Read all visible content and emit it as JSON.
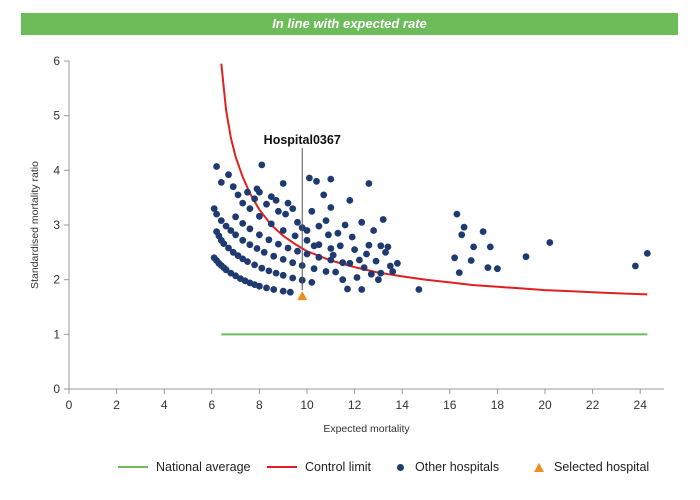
{
  "banner": {
    "text": "In line with expected rate"
  },
  "colors": {
    "banner": "#6cbd5a",
    "national": "#6cbd5a",
    "control": "#e02020",
    "hospital": "#1f3a70",
    "selected": "#f08c1e",
    "axis": "#999999"
  },
  "legend": {
    "national": "National average",
    "control": "Control limit",
    "other": "Other hospitals",
    "selected": "Selected hospital"
  },
  "chart_data": {
    "type": "scatter",
    "title": "",
    "xlabel": "Expected mortality",
    "ylabel": "Standardised mortality ratio",
    "xlim": [
      0,
      25
    ],
    "ylim": [
      0,
      6
    ],
    "xticks": [
      0,
      2,
      4,
      6,
      8,
      10,
      12,
      14,
      16,
      18,
      20,
      22,
      24
    ],
    "yticks": [
      0,
      1,
      2,
      3,
      4,
      5,
      6
    ],
    "national_average": {
      "x": [
        6.4,
        24.3
      ],
      "y": 1
    },
    "control_limit": {
      "x": [
        6.4,
        6.6,
        6.8,
        7.0,
        7.3,
        7.6,
        8.0,
        8.5,
        9.0,
        9.5,
        10.0,
        11.0,
        12.0,
        13.0,
        14.0,
        15.0,
        16.0,
        17.0,
        18.0,
        19.0,
        20.0,
        21.0,
        22.0,
        23.0,
        24.3
      ],
      "y": [
        5.95,
        5.1,
        4.6,
        4.25,
        3.88,
        3.58,
        3.28,
        3.0,
        2.8,
        2.65,
        2.52,
        2.35,
        2.23,
        2.13,
        2.06,
        2.0,
        1.95,
        1.9,
        1.87,
        1.84,
        1.81,
        1.79,
        1.77,
        1.75,
        1.73
      ]
    },
    "selected_hospital": {
      "name": "Hospital0367",
      "x": 9.8,
      "y": 1.7
    },
    "other_hospitals": [
      {
        "x": 6.1,
        "y": 2.4
      },
      {
        "x": 6.2,
        "y": 2.35
      },
      {
        "x": 6.3,
        "y": 2.3
      },
      {
        "x": 6.4,
        "y": 2.26
      },
      {
        "x": 6.5,
        "y": 2.22
      },
      {
        "x": 6.6,
        "y": 2.18
      },
      {
        "x": 6.8,
        "y": 2.12
      },
      {
        "x": 7.0,
        "y": 2.07
      },
      {
        "x": 7.2,
        "y": 2.02
      },
      {
        "x": 7.4,
        "y": 1.98
      },
      {
        "x": 7.6,
        "y": 1.94
      },
      {
        "x": 7.8,
        "y": 1.91
      },
      {
        "x": 8.0,
        "y": 1.88
      },
      {
        "x": 8.3,
        "y": 1.85
      },
      {
        "x": 8.6,
        "y": 1.82
      },
      {
        "x": 9.0,
        "y": 1.79
      },
      {
        "x": 9.3,
        "y": 1.77
      },
      {
        "x": 6.2,
        "y": 2.88
      },
      {
        "x": 6.3,
        "y": 2.8
      },
      {
        "x": 6.4,
        "y": 2.72
      },
      {
        "x": 6.5,
        "y": 2.66
      },
      {
        "x": 6.7,
        "y": 2.58
      },
      {
        "x": 6.9,
        "y": 2.5
      },
      {
        "x": 7.1,
        "y": 2.44
      },
      {
        "x": 7.3,
        "y": 2.38
      },
      {
        "x": 7.5,
        "y": 2.33
      },
      {
        "x": 7.8,
        "y": 2.27
      },
      {
        "x": 8.1,
        "y": 2.21
      },
      {
        "x": 8.4,
        "y": 2.16
      },
      {
        "x": 8.7,
        "y": 2.12
      },
      {
        "x": 9.0,
        "y": 2.08
      },
      {
        "x": 9.4,
        "y": 2.03
      },
      {
        "x": 9.8,
        "y": 1.99
      },
      {
        "x": 10.2,
        "y": 1.95
      },
      {
        "x": 6.1,
        "y": 3.3
      },
      {
        "x": 6.2,
        "y": 3.2
      },
      {
        "x": 6.4,
        "y": 3.08
      },
      {
        "x": 6.6,
        "y": 2.98
      },
      {
        "x": 6.8,
        "y": 2.9
      },
      {
        "x": 7.0,
        "y": 2.82
      },
      {
        "x": 7.3,
        "y": 2.72
      },
      {
        "x": 7.6,
        "y": 2.64
      },
      {
        "x": 7.9,
        "y": 2.57
      },
      {
        "x": 8.2,
        "y": 2.5
      },
      {
        "x": 8.6,
        "y": 2.43
      },
      {
        "x": 9.0,
        "y": 2.37
      },
      {
        "x": 9.4,
        "y": 2.31
      },
      {
        "x": 9.8,
        "y": 2.26
      },
      {
        "x": 10.3,
        "y": 2.2
      },
      {
        "x": 10.8,
        "y": 2.15
      },
      {
        "x": 7.0,
        "y": 3.15
      },
      {
        "x": 7.3,
        "y": 3.03
      },
      {
        "x": 7.6,
        "y": 2.93
      },
      {
        "x": 8.0,
        "y": 2.82
      },
      {
        "x": 8.4,
        "y": 2.73
      },
      {
        "x": 8.8,
        "y": 2.65
      },
      {
        "x": 9.2,
        "y": 2.58
      },
      {
        "x": 9.6,
        "y": 2.52
      },
      {
        "x": 10.0,
        "y": 2.47
      },
      {
        "x": 10.5,
        "y": 2.41
      },
      {
        "x": 11.0,
        "y": 2.36
      },
      {
        "x": 11.5,
        "y": 2.31
      },
      {
        "x": 7.6,
        "y": 3.3
      },
      {
        "x": 8.0,
        "y": 3.16
      },
      {
        "x": 8.5,
        "y": 3.02
      },
      {
        "x": 9.0,
        "y": 2.9
      },
      {
        "x": 9.5,
        "y": 2.8
      },
      {
        "x": 10.0,
        "y": 2.72
      },
      {
        "x": 10.5,
        "y": 2.64
      },
      {
        "x": 11.0,
        "y": 2.57
      },
      {
        "x": 6.2,
        "y": 4.07
      },
      {
        "x": 6.4,
        "y": 3.78
      },
      {
        "x": 6.7,
        "y": 3.92
      },
      {
        "x": 6.9,
        "y": 3.7
      },
      {
        "x": 7.1,
        "y": 3.55
      },
      {
        "x": 7.3,
        "y": 3.4
      },
      {
        "x": 7.5,
        "y": 3.6
      },
      {
        "x": 7.8,
        "y": 3.48
      },
      {
        "x": 7.9,
        "y": 3.66
      },
      {
        "x": 8.0,
        "y": 3.6
      },
      {
        "x": 8.1,
        "y": 4.1
      },
      {
        "x": 8.3,
        "y": 3.38
      },
      {
        "x": 8.5,
        "y": 3.52
      },
      {
        "x": 8.7,
        "y": 3.45
      },
      {
        "x": 8.8,
        "y": 3.25
      },
      {
        "x": 9.0,
        "y": 3.76
      },
      {
        "x": 9.1,
        "y": 3.2
      },
      {
        "x": 9.2,
        "y": 3.4
      },
      {
        "x": 9.4,
        "y": 3.3
      },
      {
        "x": 9.6,
        "y": 3.05
      },
      {
        "x": 9.8,
        "y": 2.95
      },
      {
        "x": 10.0,
        "y": 2.9
      },
      {
        "x": 10.1,
        "y": 3.86
      },
      {
        "x": 10.2,
        "y": 3.25
      },
      {
        "x": 10.3,
        "y": 2.62
      },
      {
        "x": 10.4,
        "y": 3.8
      },
      {
        "x": 10.5,
        "y": 2.98
      },
      {
        "x": 10.7,
        "y": 3.55
      },
      {
        "x": 10.8,
        "y": 3.08
      },
      {
        "x": 10.9,
        "y": 2.82
      },
      {
        "x": 11.0,
        "y": 3.84
      },
      {
        "x": 11.0,
        "y": 3.32
      },
      {
        "x": 11.1,
        "y": 2.45
      },
      {
        "x": 11.2,
        "y": 2.14
      },
      {
        "x": 11.3,
        "y": 2.85
      },
      {
        "x": 11.4,
        "y": 2.62
      },
      {
        "x": 11.5,
        "y": 2.0
      },
      {
        "x": 11.6,
        "y": 3.0
      },
      {
        "x": 11.7,
        "y": 1.83
      },
      {
        "x": 11.8,
        "y": 3.45
      },
      {
        "x": 11.8,
        "y": 2.3
      },
      {
        "x": 11.9,
        "y": 2.78
      },
      {
        "x": 12.0,
        "y": 2.55
      },
      {
        "x": 12.1,
        "y": 2.04
      },
      {
        "x": 12.2,
        "y": 2.36
      },
      {
        "x": 12.3,
        "y": 3.05
      },
      {
        "x": 12.3,
        "y": 1.82
      },
      {
        "x": 12.4,
        "y": 2.22
      },
      {
        "x": 12.5,
        "y": 2.47
      },
      {
        "x": 12.6,
        "y": 3.76
      },
      {
        "x": 12.6,
        "y": 2.63
      },
      {
        "x": 12.7,
        "y": 2.1
      },
      {
        "x": 12.8,
        "y": 2.9
      },
      {
        "x": 12.9,
        "y": 2.34
      },
      {
        "x": 13.0,
        "y": 2.0
      },
      {
        "x": 13.1,
        "y": 2.62
      },
      {
        "x": 13.1,
        "y": 2.12
      },
      {
        "x": 13.2,
        "y": 3.1
      },
      {
        "x": 13.3,
        "y": 2.5
      },
      {
        "x": 13.4,
        "y": 2.6
      },
      {
        "x": 13.5,
        "y": 2.25
      },
      {
        "x": 13.6,
        "y": 2.15
      },
      {
        "x": 13.8,
        "y": 2.3
      },
      {
        "x": 14.7,
        "y": 1.82
      },
      {
        "x": 16.2,
        "y": 2.4
      },
      {
        "x": 16.3,
        "y": 3.2
      },
      {
        "x": 16.4,
        "y": 2.13
      },
      {
        "x": 16.5,
        "y": 2.82
      },
      {
        "x": 16.6,
        "y": 2.96
      },
      {
        "x": 16.9,
        "y": 2.35
      },
      {
        "x": 17.0,
        "y": 2.6
      },
      {
        "x": 17.4,
        "y": 2.88
      },
      {
        "x": 17.6,
        "y": 2.22
      },
      {
        "x": 17.7,
        "y": 2.6
      },
      {
        "x": 18.0,
        "y": 2.2
      },
      {
        "x": 19.2,
        "y": 2.42
      },
      {
        "x": 20.2,
        "y": 2.68
      },
      {
        "x": 23.8,
        "y": 2.25
      },
      {
        "x": 24.3,
        "y": 2.48
      }
    ]
  }
}
